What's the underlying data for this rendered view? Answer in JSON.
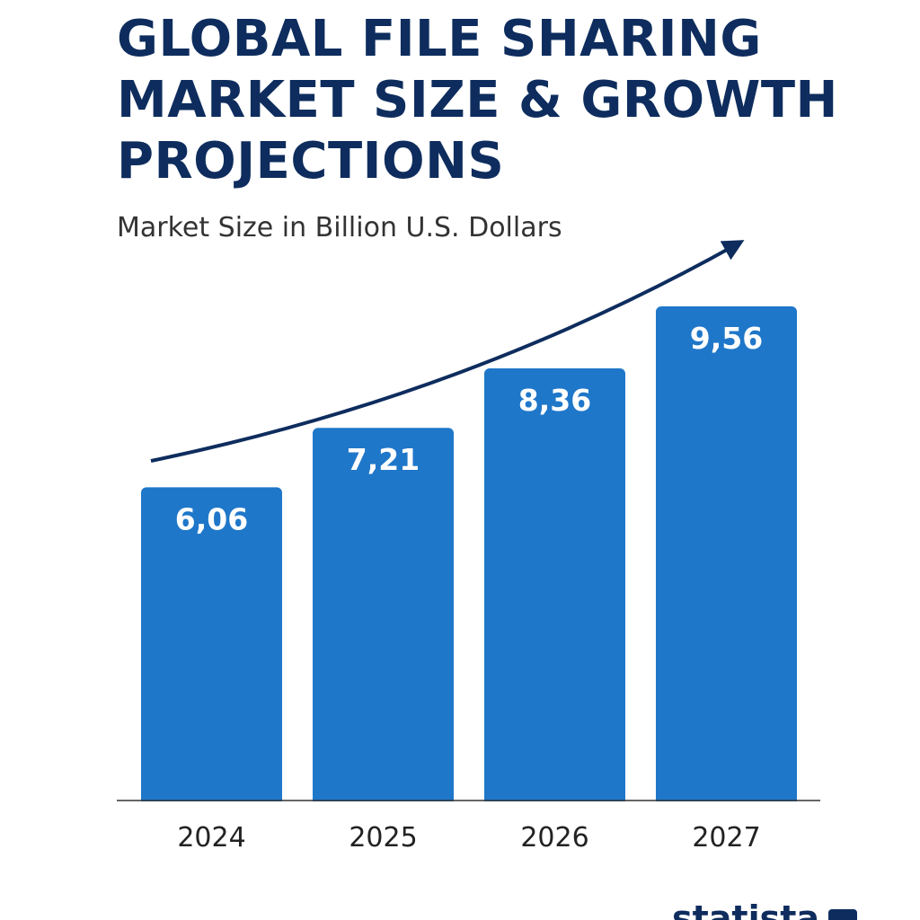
{
  "title": "GLOBAL FILE SHARING MARKET SIZE & GROWTH PROJECTIONS",
  "subtitle": "Market Size in Billion U.S. Dollars",
  "logo": {
    "text": "statista"
  },
  "colors": {
    "bar": "#1f77c9",
    "title": "#0e2d5e",
    "arrow": "#0e2d5e"
  },
  "chart_data": {
    "type": "bar",
    "title": "GLOBAL FILE SHARING MARKET SIZE & GROWTH PROJECTIONS",
    "subtitle": "Market Size in Billion U.S. Dollars",
    "categories": [
      "2024",
      "2025",
      "2026",
      "2027"
    ],
    "values": [
      6.06,
      7.21,
      8.36,
      9.56
    ],
    "value_labels": [
      "6,06",
      "7,21",
      "8,36",
      "9,56"
    ],
    "xlabel": "",
    "ylabel": "",
    "ylim": [
      0,
      9.56
    ],
    "grid": false,
    "legend": "none",
    "annotation": "upward trend arrow"
  }
}
